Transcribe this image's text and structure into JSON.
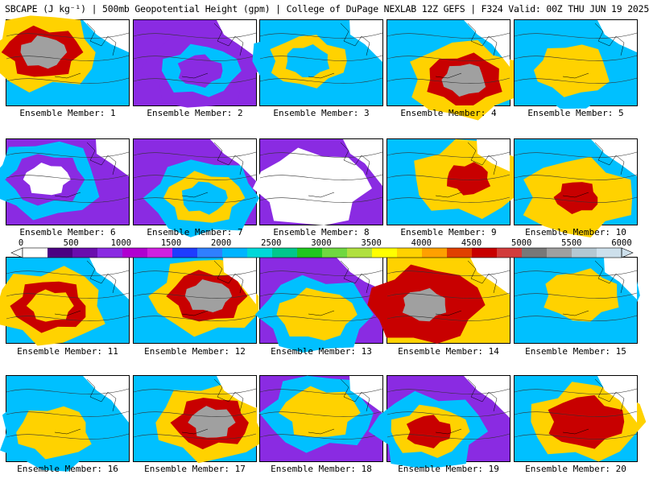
{
  "header": {
    "title": "SBCAPE (J kg⁻¹) | 500mb Geopotential Height (gpm) | College of DuPage NEXLAB 12Z GEFS | F324 Valid: 00Z THU JUN 19 2025"
  },
  "colorbar": {
    "tick_labels": [
      "0",
      "500",
      "1000",
      "1500",
      "2000",
      "2500",
      "3000",
      "3500",
      "4000",
      "4500",
      "5000",
      "5500",
      "6000"
    ],
    "colors": [
      "#ffffff",
      "#4b0082",
      "#6a0dad",
      "#8a2be2",
      "#b000d0",
      "#d020e0",
      "#1e3cff",
      "#2f7fff",
      "#00b4ff",
      "#00d8d8",
      "#00c88c",
      "#20c820",
      "#70d840",
      "#b0e040",
      "#ffff00",
      "#ffd200",
      "#ffa000",
      "#e04000",
      "#c80000",
      "#d23c3c",
      "#787878",
      "#a0a0a0",
      "#b4c8d2",
      "#cde0ec"
    ]
  },
  "members": [
    {
      "label": "Ensemble Member: 1",
      "levels": [
        2,
        3,
        4,
        5
      ]
    },
    {
      "label": "Ensemble Member: 2",
      "levels": [
        1,
        1,
        2,
        1
      ]
    },
    {
      "label": "Ensemble Member: 3",
      "levels": [
        2,
        2,
        3,
        2
      ]
    },
    {
      "label": "Ensemble Member: 4",
      "levels": [
        2,
        3,
        4,
        5
      ]
    },
    {
      "label": "Ensemble Member: 5",
      "levels": [
        2,
        2,
        3,
        3
      ]
    },
    {
      "label": "Ensemble Member: 6",
      "levels": [
        1,
        2,
        1,
        0
      ]
    },
    {
      "label": "Ensemble Member: 7",
      "levels": [
        1,
        2,
        3,
        2
      ]
    },
    {
      "label": "Ensemble Member: 8",
      "levels": [
        1,
        0,
        0,
        0
      ]
    },
    {
      "label": "Ensemble Member: 9",
      "levels": [
        2,
        3,
        3,
        4
      ]
    },
    {
      "label": "Ensemble Member: 10",
      "levels": [
        2,
        3,
        3,
        4
      ]
    },
    {
      "label": "Ensemble Member: 11",
      "levels": [
        2,
        3,
        4,
        3
      ]
    },
    {
      "label": "Ensemble Member: 12",
      "levels": [
        2,
        3,
        4,
        5
      ]
    },
    {
      "label": "Ensemble Member: 13",
      "levels": [
        1,
        2,
        3,
        3
      ]
    },
    {
      "label": "Ensemble Member: 14",
      "levels": [
        3,
        4,
        4,
        5
      ]
    },
    {
      "label": "Ensemble Member: 15",
      "levels": [
        2,
        2,
        3,
        3
      ]
    },
    {
      "label": "Ensemble Member: 16",
      "levels": [
        2,
        2,
        3,
        3
      ]
    },
    {
      "label": "Ensemble Member: 17",
      "levels": [
        2,
        3,
        4,
        5
      ]
    },
    {
      "label": "Ensemble Member: 18",
      "levels": [
        1,
        2,
        3,
        3
      ]
    },
    {
      "label": "Ensemble Member: 19",
      "levels": [
        1,
        2,
        3,
        4
      ]
    },
    {
      "label": "Ensemble Member: 20",
      "levels": [
        2,
        3,
        4,
        4
      ]
    }
  ],
  "level_colors": [
    "#ffffff",
    "#8a2be2",
    "#00c0ff",
    "#ffd200",
    "#c80000",
    "#a0a0a0"
  ]
}
